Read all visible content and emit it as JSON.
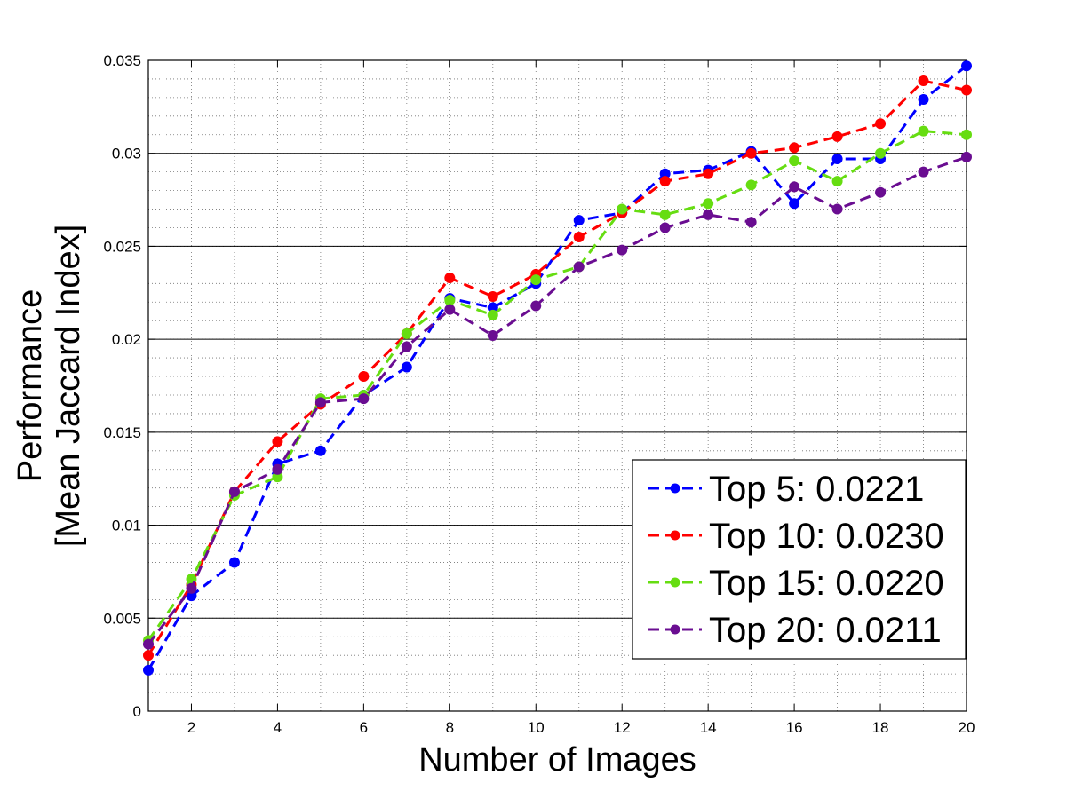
{
  "chart_data": {
    "type": "line",
    "title": "",
    "xlabel": "Number of Images",
    "ylabel_lines": [
      "Performance",
      "[Mean Jaccard Index]"
    ],
    "xlim": [
      1,
      20
    ],
    "ylim": [
      0,
      0.035
    ],
    "x_ticks": [
      2,
      4,
      6,
      8,
      10,
      12,
      14,
      16,
      18,
      20
    ],
    "y_ticks": [
      0,
      0.005,
      0.01,
      0.015,
      0.02,
      0.025,
      0.03,
      0.035
    ],
    "y_tick_labels": [
      "0",
      "0.005",
      "0.01",
      "0.015",
      "0.02",
      "0.025",
      "0.03",
      "0.035"
    ],
    "grid": true,
    "legend_position": "bottom-right",
    "x": [
      1,
      2,
      3,
      4,
      5,
      6,
      7,
      8,
      9,
      10,
      11,
      12,
      13,
      14,
      15,
      16,
      17,
      18,
      19,
      20
    ],
    "series": [
      {
        "name": "Top 5: 0.0221",
        "color": "#0000ff",
        "values": [
          0.0022,
          0.0062,
          0.008,
          0.0133,
          0.014,
          0.017,
          0.0185,
          0.0222,
          0.0217,
          0.023,
          0.0264,
          0.0268,
          0.0289,
          0.0291,
          0.0301,
          0.0273,
          0.0297,
          0.0297,
          0.0329,
          0.0347
        ]
      },
      {
        "name": "Top 10: 0.0230",
        "color": "#ff0000",
        "values": [
          0.003,
          0.0068,
          0.0118,
          0.0145,
          0.0165,
          0.018,
          0.0203,
          0.0233,
          0.0223,
          0.0235,
          0.0255,
          0.0268,
          0.0285,
          0.0289,
          0.03,
          0.0303,
          0.0309,
          0.0316,
          0.0339,
          0.0334
        ]
      },
      {
        "name": "Top 15: 0.0220",
        "color": "#66dd11",
        "values": [
          0.0038,
          0.0071,
          0.0116,
          0.0126,
          0.0168,
          0.017,
          0.0203,
          0.0221,
          0.0213,
          0.0232,
          0.0239,
          0.027,
          0.0267,
          0.0273,
          0.0283,
          0.0296,
          0.0285,
          0.03,
          0.0312,
          0.031
        ]
      },
      {
        "name": "Top 20: 0.0211",
        "color": "#6a0d91",
        "values": [
          0.0036,
          0.0066,
          0.0118,
          0.013,
          0.0166,
          0.0168,
          0.0196,
          0.0216,
          0.0202,
          0.0218,
          0.0239,
          0.0248,
          0.026,
          0.0267,
          0.0263,
          0.0282,
          0.027,
          0.0279,
          0.029,
          0.0298
        ]
      }
    ]
  }
}
